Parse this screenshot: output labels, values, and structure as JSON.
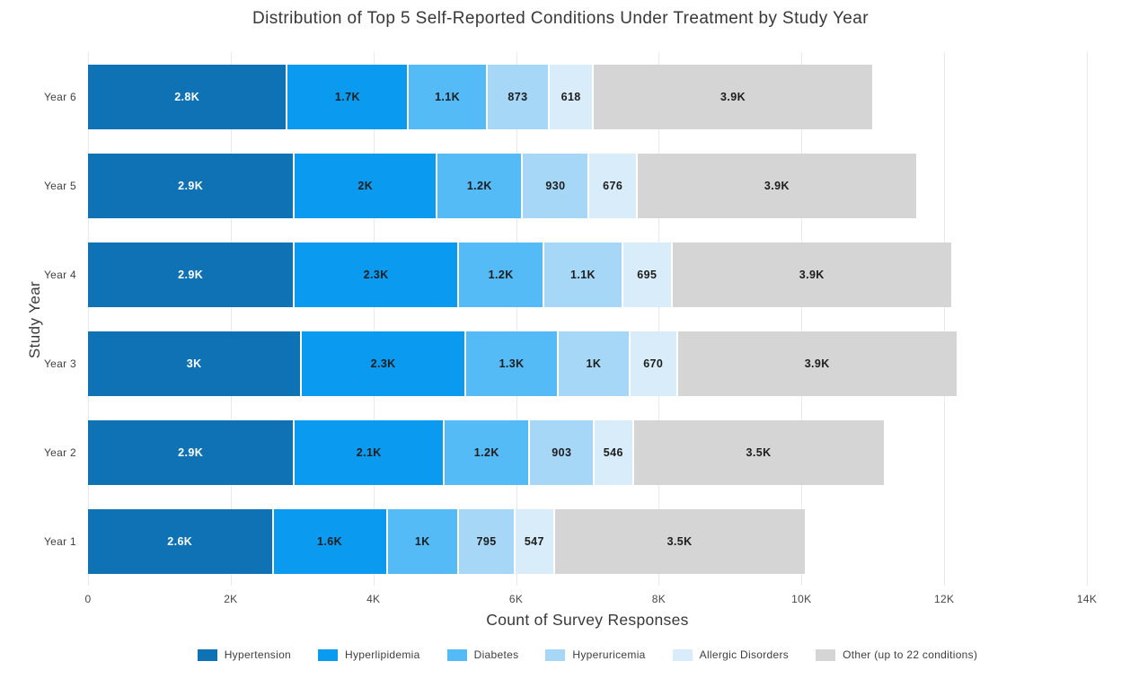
{
  "chart_data": {
    "type": "bar",
    "orientation": "horizontal",
    "stacked": true,
    "title": "Distribution of Top 5 Self-Reported Conditions Under Treatment by Study Year",
    "xlabel": "Count of Survey Responses",
    "ylabel": "Study Year",
    "xlim": [
      0,
      14000
    ],
    "grid": true,
    "legend_position": "bottom",
    "x_ticks": [
      {
        "label": "0",
        "value": 0
      },
      {
        "label": "2K",
        "value": 2000
      },
      {
        "label": "4K",
        "value": 4000
      },
      {
        "label": "6K",
        "value": 6000
      },
      {
        "label": "8K",
        "value": 8000
      },
      {
        "label": "10K",
        "value": 10000
      },
      {
        "label": "12K",
        "value": 12000
      },
      {
        "label": "14K",
        "value": 14000
      }
    ],
    "series": [
      {
        "name": "Hypertension",
        "color": "#0F72B5",
        "label_color": "#ffffff"
      },
      {
        "name": "Hyperlipidemia",
        "color": "#0A9BF0",
        "label_color": "#1d1d1d"
      },
      {
        "name": "Diabetes",
        "color": "#55BBF6",
        "label_color": "#1d1d1d"
      },
      {
        "name": "Hyperuricemia",
        "color": "#A6D7F7",
        "label_color": "#1d1d1d"
      },
      {
        "name": "Allergic Disorders",
        "color": "#D9ECFA",
        "label_color": "#1d1d1d"
      },
      {
        "name": "Other (up to 22 conditions)",
        "color": "#D5D5D5",
        "label_color": "#1d1d1d"
      }
    ],
    "categories": [
      "Year 6",
      "Year 5",
      "Year 4",
      "Year 3",
      "Year 2",
      "Year 1"
    ],
    "rows": [
      {
        "category": "Year 6",
        "values": [
          2800,
          1700,
          1100,
          873,
          618,
          3900
        ],
        "labels": [
          "2.8K",
          "1.7K",
          "1.1K",
          "873",
          "618",
          "3.9K"
        ]
      },
      {
        "category": "Year 5",
        "values": [
          2900,
          2000,
          1200,
          930,
          676,
          3900
        ],
        "labels": [
          "2.9K",
          "2K",
          "1.2K",
          "930",
          "676",
          "3.9K"
        ]
      },
      {
        "category": "Year 4",
        "values": [
          2900,
          2300,
          1200,
          1100,
          695,
          3900
        ],
        "labels": [
          "2.9K",
          "2.3K",
          "1.2K",
          "1.1K",
          "695",
          "3.9K"
        ]
      },
      {
        "category": "Year 3",
        "values": [
          3000,
          2300,
          1300,
          1000,
          670,
          3900
        ],
        "labels": [
          "3K",
          "2.3K",
          "1.3K",
          "1K",
          "670",
          "3.9K"
        ]
      },
      {
        "category": "Year 2",
        "values": [
          2900,
          2100,
          1200,
          903,
          546,
          3500
        ],
        "labels": [
          "2.9K",
          "2.1K",
          "1.2K",
          "903",
          "546",
          "3.5K"
        ]
      },
      {
        "category": "Year 1",
        "values": [
          2600,
          1600,
          1000,
          795,
          547,
          3500
        ],
        "labels": [
          "2.6K",
          "1.6K",
          "1K",
          "795",
          "547",
          "3.5K"
        ]
      }
    ]
  }
}
